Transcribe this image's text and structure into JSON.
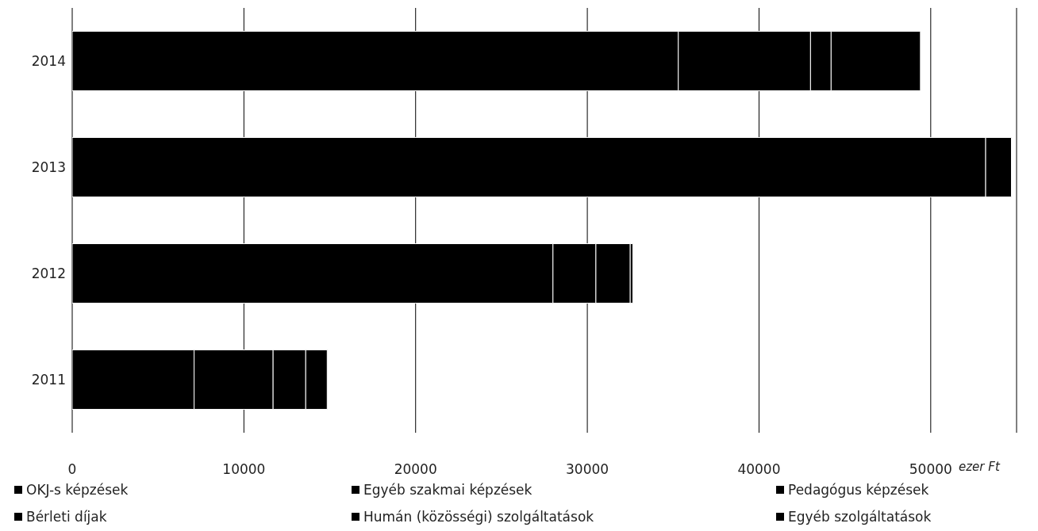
{
  "chart_data": {
    "type": "bar",
    "orientation": "horizontal",
    "stacked": true,
    "xlabel": "ezer Ft",
    "categories": [
      "2014",
      "2013",
      "2012",
      "2011"
    ],
    "series": [
      {
        "name": "OKJ-s képzések",
        "color": "#000000",
        "values": [
          35300,
          53200,
          28000,
          7100
        ]
      },
      {
        "name": "Egyéb szakmai képzések",
        "color": "#000000",
        "values": [
          7700,
          1500,
          2500,
          4600
        ]
      },
      {
        "name": "Pedagógus képzések",
        "color": "#000000",
        "values": [
          1200,
          0,
          2000,
          1900
        ]
      },
      {
        "name": "Bérleti díjak",
        "color": "#000000",
        "values": [
          5200,
          0,
          150,
          1250
        ]
      },
      {
        "name": "Humán (közösségi) szolgáltatások",
        "color": "#000000",
        "values": [
          0,
          0,
          0,
          0
        ]
      },
      {
        "name": "Egyéb szolgáltatások",
        "color": "#000000",
        "values": [
          0,
          0,
          0,
          0
        ]
      }
    ],
    "xlim": [
      0,
      55000
    ],
    "xticks": [
      0,
      10000,
      20000,
      30000,
      40000,
      50000
    ],
    "grid": "x",
    "legend": "bottom"
  }
}
